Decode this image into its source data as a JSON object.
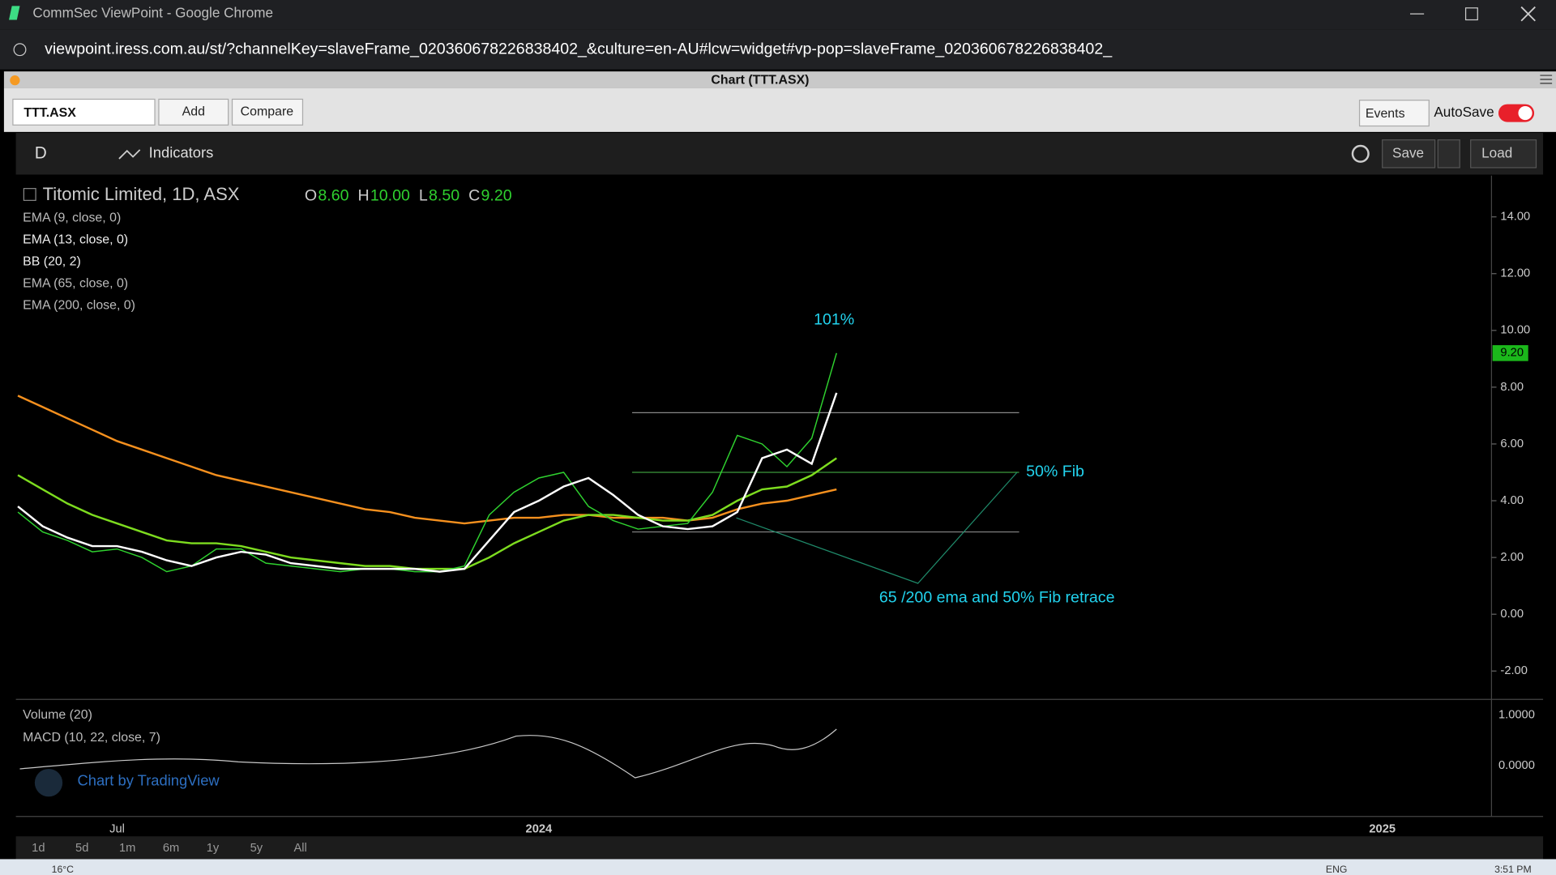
{
  "browser": {
    "title": "CommSec ViewPoint - Google Chrome",
    "url": "viewpoint.iress.com.au/st/?channelKey=slaveFrame_020360678226838402_&culture=en-AU#lcw=widget#vp-pop=slaveFrame_020360678226838402_"
  },
  "panel": {
    "title": "Chart (TTT.ASX)",
    "symbol": "TTT.ASX",
    "add": "Add",
    "compare": "Compare",
    "events": "Events",
    "autosave": "AutoSave"
  },
  "toolbar": {
    "interval": "D",
    "indicators": "Indicators",
    "save": "Save",
    "load": "Load"
  },
  "legend": {
    "name": "Titomic Limited, 1D, ASX",
    "ohlc": [
      {
        "key": "O",
        "value": "8.60"
      },
      {
        "key": "H",
        "value": "10.00"
      },
      {
        "key": "L",
        "value": "8.50"
      },
      {
        "key": "C",
        "value": "9.20"
      }
    ],
    "extra_studies": [
      "EMA (13, close, 0)",
      "BB (20, 2)"
    ]
  },
  "lower_pane": {
    "studies": [
      "Volume (20)",
      "MACD (10, 22, close, 7)"
    ],
    "ticks": [
      "1.0000",
      "0.0000"
    ],
    "watermark": "Chart by TradingView"
  },
  "ranges": [
    "1d",
    "5d",
    "1m",
    "6m",
    "1y",
    "5y",
    "All"
  ],
  "taskbar": {
    "weather": "16°C",
    "language": "ENG",
    "time": "3:51 PM"
  },
  "chart_data": {
    "type": "line",
    "categories": [
      null,
      null,
      null,
      null,
      "Jul",
      null,
      null,
      null,
      null,
      null,
      null,
      null,
      null,
      null,
      null,
      null,
      null,
      null,
      null,
      null,
      null,
      "2024",
      null,
      null,
      null,
      null,
      null,
      null,
      null,
      null,
      null,
      null,
      null,
      null,
      null,
      null,
      null,
      null,
      null,
      null,
      null,
      null,
      null,
      null,
      null,
      null,
      null,
      null,
      null,
      null,
      null,
      null,
      null,
      null,
      null,
      "2025"
    ],
    "series": [
      {
        "name": "Titomic Limited, 1D, ASX",
        "color": "#2fd12f",
        "values": [
          3.6,
          2.9,
          2.6,
          2.2,
          2.3,
          2.0,
          1.5,
          1.7,
          2.3,
          2.3,
          1.8,
          1.7,
          1.6,
          1.5,
          1.6,
          1.6,
          1.5,
          1.5,
          1.7,
          3.5,
          4.3,
          4.8,
          5.0,
          3.8,
          3.3,
          3.0,
          3.1,
          3.2,
          4.3,
          6.3,
          6.0,
          5.2,
          6.2,
          9.2,
          null,
          null,
          null,
          null,
          null,
          null,
          null,
          null,
          null,
          null,
          null,
          null,
          null,
          null,
          null,
          null,
          null,
          null,
          null,
          null,
          null,
          null
        ]
      },
      {
        "name": "EMA (9, close, 0)",
        "color": "#ffffff",
        "values": [
          3.8,
          3.1,
          2.7,
          2.4,
          2.4,
          2.2,
          1.9,
          1.7,
          2.0,
          2.2,
          2.1,
          1.8,
          1.7,
          1.6,
          1.6,
          1.6,
          1.6,
          1.5,
          1.6,
          2.6,
          3.6,
          4.0,
          4.5,
          4.8,
          4.2,
          3.5,
          3.1,
          3.0,
          3.1,
          3.6,
          5.5,
          5.8,
          5.3,
          7.8,
          null,
          null,
          null,
          null,
          null,
          null,
          null,
          null,
          null,
          null,
          null,
          null,
          null,
          null,
          null,
          null,
          null,
          null,
          null,
          null,
          null,
          null
        ]
      },
      {
        "name": "EMA (65, close, 0)",
        "color": "#7ddc1f",
        "values": [
          4.9,
          4.4,
          3.9,
          3.5,
          3.2,
          2.9,
          2.6,
          2.5,
          2.5,
          2.4,
          2.2,
          2.0,
          1.9,
          1.8,
          1.7,
          1.7,
          1.6,
          1.6,
          1.6,
          2.0,
          2.5,
          2.9,
          3.3,
          3.5,
          3.5,
          3.4,
          3.3,
          3.3,
          3.5,
          4.0,
          4.4,
          4.5,
          4.9,
          5.5,
          null,
          null,
          null,
          null,
          null,
          null,
          null,
          null,
          null,
          null,
          null,
          null,
          null,
          null,
          null,
          null,
          null,
          null,
          null,
          null,
          null,
          null
        ]
      },
      {
        "name": "EMA (200, close, 0)",
        "color": "#f5901e",
        "values": [
          7.7,
          7.3,
          6.9,
          6.5,
          6.1,
          5.8,
          5.5,
          5.2,
          4.9,
          4.7,
          4.5,
          4.3,
          4.1,
          3.9,
          3.7,
          3.6,
          3.4,
          3.3,
          3.2,
          3.3,
          3.4,
          3.4,
          3.5,
          3.5,
          3.4,
          3.4,
          3.4,
          3.3,
          3.4,
          3.7,
          3.9,
          4.0,
          4.2,
          4.4,
          null,
          null,
          null,
          null,
          null,
          null,
          null,
          null,
          null,
          null,
          null,
          null,
          null,
          null,
          null,
          null,
          null,
          null,
          null,
          null,
          null,
          null
        ]
      }
    ],
    "ylim": [
      -3,
      15
    ],
    "yticks": [
      {
        "value": -2,
        "label": "-2.00"
      },
      {
        "value": 0,
        "label": "0.00"
      },
      {
        "value": 2,
        "label": "2.00"
      },
      {
        "value": 4,
        "label": "4.00"
      },
      {
        "value": 6,
        "label": "6.00"
      },
      {
        "value": 8,
        "label": "8.00"
      },
      {
        "value": 10,
        "label": "10.00"
      },
      {
        "value": 12,
        "label": "12.00"
      },
      {
        "value": 14,
        "label": "14.00"
      }
    ],
    "last_price": {
      "value": 9.2,
      "label": "9.20"
    },
    "fib_levels": [
      7.1,
      5.0,
      2.9
    ],
    "annotations": [
      "101%",
      "50% Fib",
      "65 /200 ema and 50% Fib retrace"
    ]
  }
}
